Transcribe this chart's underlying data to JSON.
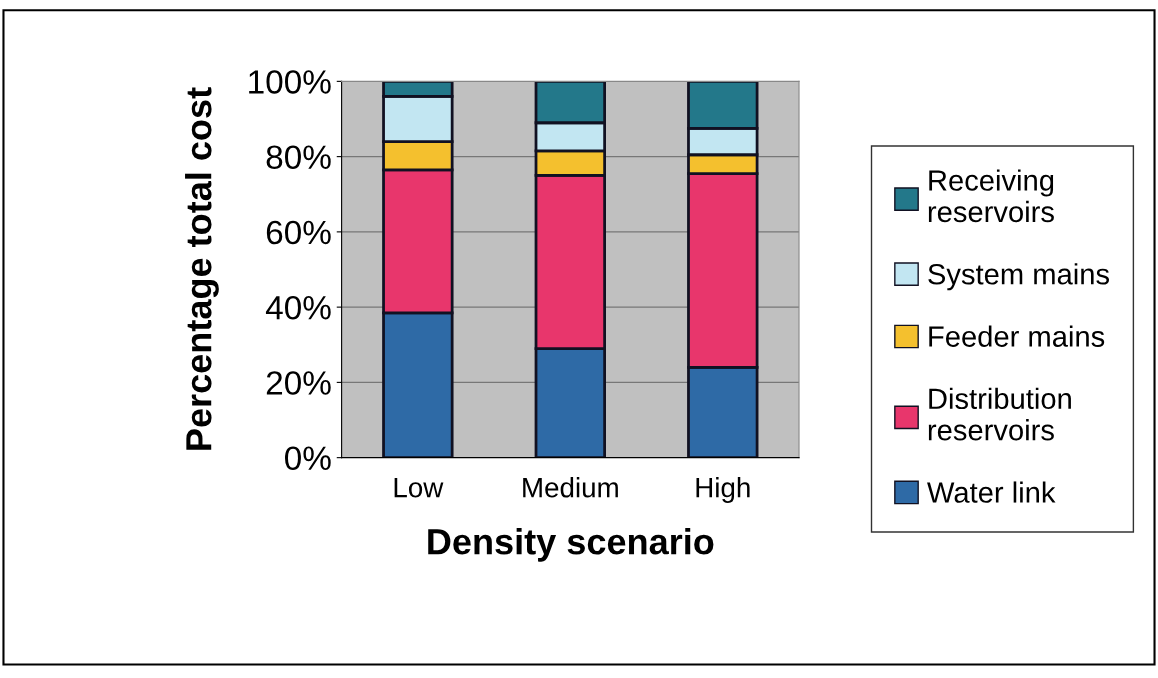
{
  "chart_data": {
    "type": "bar",
    "stacked": true,
    "xlabel": "Density scenario",
    "ylabel": "Percentage total cost",
    "categories": [
      "Low",
      "Medium",
      "High"
    ],
    "series": [
      {
        "name": "Water link",
        "color": "#2e6aa6",
        "values": [
          38.5,
          29,
          24
        ]
      },
      {
        "name": "Distribution reservoirs",
        "color": "#e8366c",
        "values": [
          38,
          46,
          51.5
        ]
      },
      {
        "name": "Feeder mains",
        "color": "#f4c02e",
        "values": [
          7.5,
          6.5,
          5
        ]
      },
      {
        "name": "System mains",
        "color": "#c2e6f2",
        "values": [
          12,
          7.5,
          7
        ]
      },
      {
        "name": "Receiving reservoirs",
        "color": "#23788a",
        "values": [
          4,
          11,
          12.5
        ]
      }
    ],
    "ylim": [
      0,
      100
    ],
    "yticks": [
      {
        "value": 0,
        "label": "0%"
      },
      {
        "value": 20,
        "label": "20%"
      },
      {
        "value": 40,
        "label": "40%"
      },
      {
        "value": 60,
        "label": "60%"
      },
      {
        "value": 80,
        "label": "80%"
      },
      {
        "value": 100,
        "label": "100%"
      }
    ],
    "grid": "y",
    "legend": "right"
  }
}
